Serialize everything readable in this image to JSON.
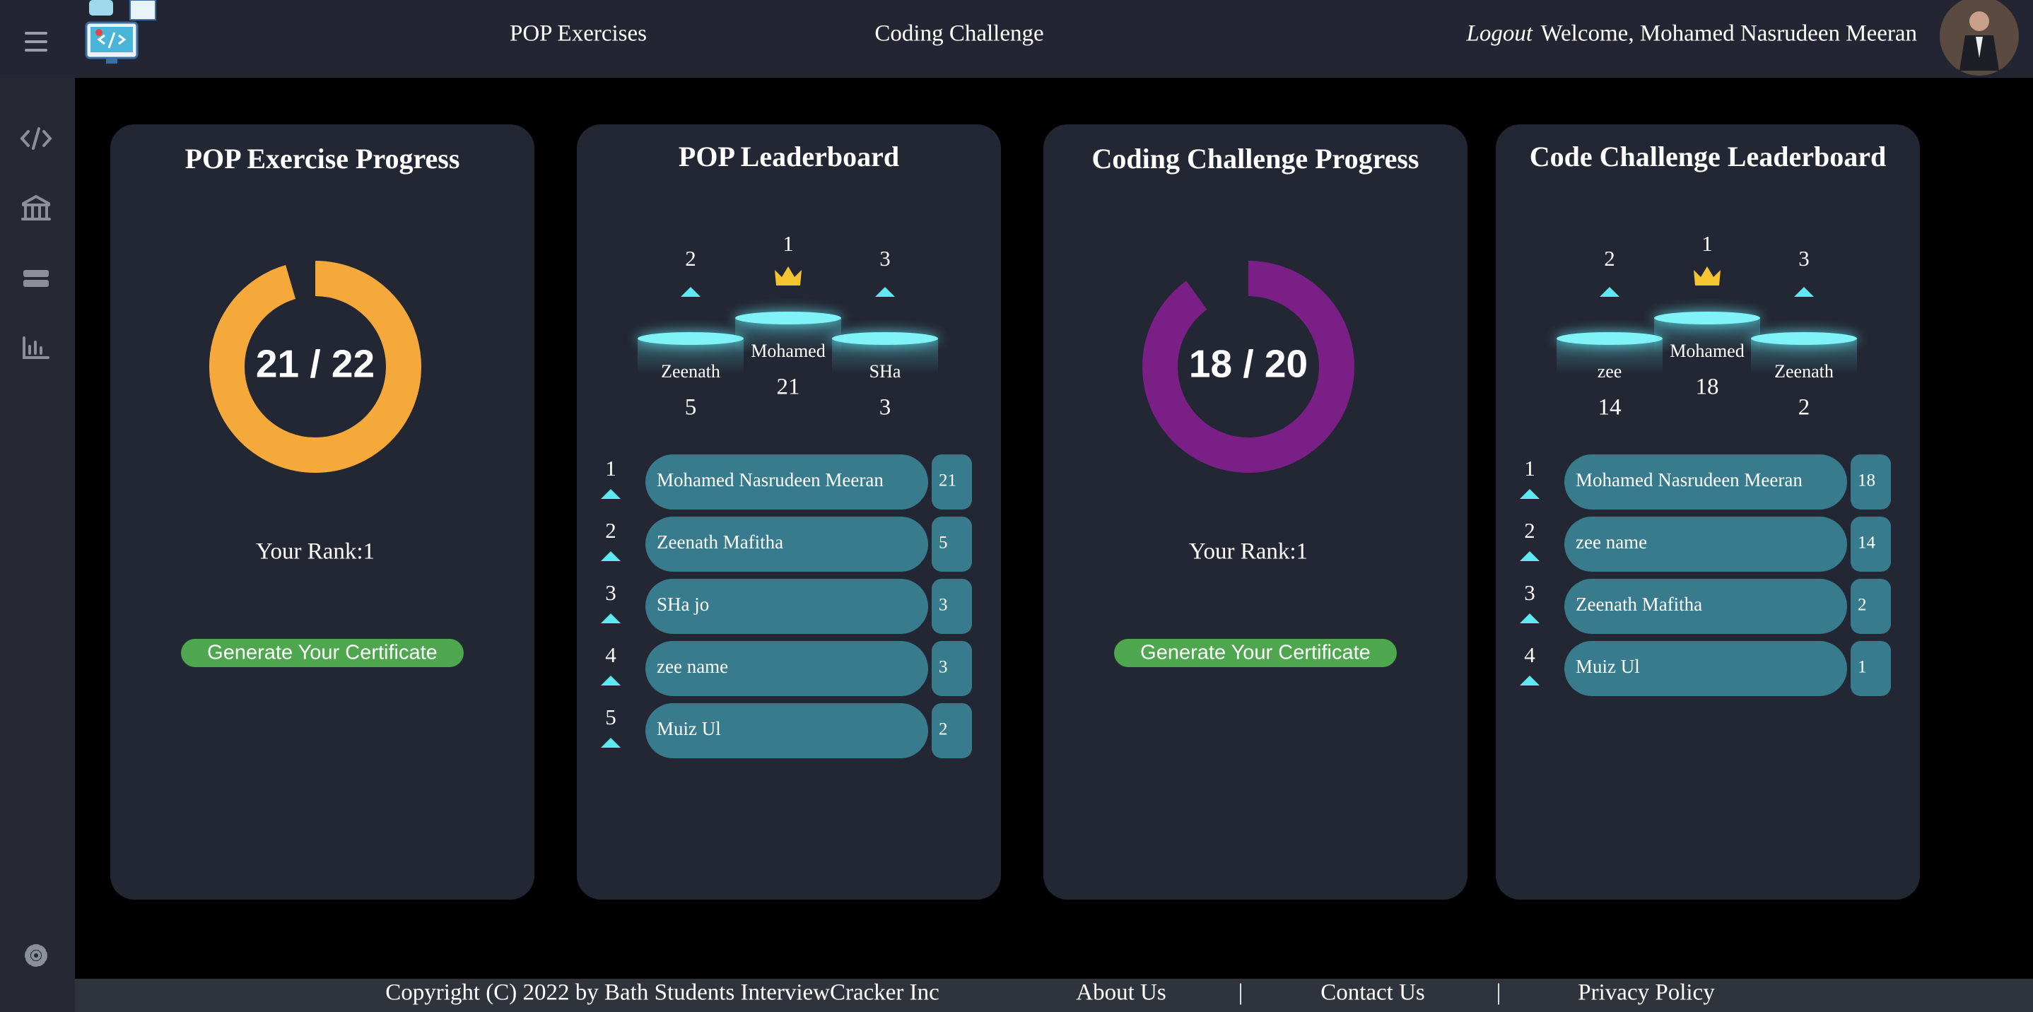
{
  "header": {
    "nav": [
      "POP Exercises",
      "Coding Challenge"
    ],
    "logout": "Logout",
    "welcome": "Welcome, Mohamed Nasrudeen Meeran"
  },
  "cards": [
    {
      "type": "progress",
      "title": "POP Exercise Progress",
      "ring": {
        "label": "21 / 22",
        "value": 21,
        "max": 22,
        "color": "#f4a93a"
      },
      "rank": "Your Rank:1",
      "button": "Generate Your Certificate"
    },
    {
      "type": "leaderboard",
      "title": "POP Leaderboard",
      "podium": [
        {
          "rank": 2,
          "name": "Zeenath",
          "score": 5
        },
        {
          "rank": 1,
          "name": "Mohamed",
          "score": 21
        },
        {
          "rank": 3,
          "name": "SHa",
          "score": 3
        }
      ],
      "rows": [
        {
          "rank": 1,
          "name": "Mohamed Nasrudeen Meeran",
          "score": 21
        },
        {
          "rank": 2,
          "name": "Zeenath Mafitha",
          "score": 5
        },
        {
          "rank": 3,
          "name": "SHa jo",
          "score": 3
        },
        {
          "rank": 4,
          "name": "zee name",
          "score": 3
        },
        {
          "rank": 5,
          "name": "Muiz Ul",
          "score": 2
        }
      ]
    },
    {
      "type": "progress",
      "title": "Coding Challenge Progress",
      "ring": {
        "label": "18 / 20",
        "value": 18,
        "max": 20,
        "color": "#7a1f86"
      },
      "rank": "Your Rank:1",
      "button": "Generate Your Certificate"
    },
    {
      "type": "leaderboard",
      "title": "Code Challenge Leaderboard",
      "podium": [
        {
          "rank": 2,
          "name": "zee",
          "score": 14
        },
        {
          "rank": 1,
          "name": "Mohamed",
          "score": 18
        },
        {
          "rank": 3,
          "name": "Zeenath",
          "score": 2
        }
      ],
      "rows": [
        {
          "rank": 1,
          "name": "Mohamed Nasrudeen Meeran",
          "score": 18
        },
        {
          "rank": 2,
          "name": "zee name",
          "score": 14
        },
        {
          "rank": 3,
          "name": "Zeenath Mafitha",
          "score": 2
        },
        {
          "rank": 4,
          "name": "Muiz Ul",
          "score": 1
        }
      ]
    }
  ],
  "footer": {
    "copyright": "Copyright (C) 2022 by Bath Students InterviewCracker Inc",
    "links": [
      "About Us",
      "|",
      "Contact Us",
      "|",
      "Privacy Policy"
    ]
  }
}
